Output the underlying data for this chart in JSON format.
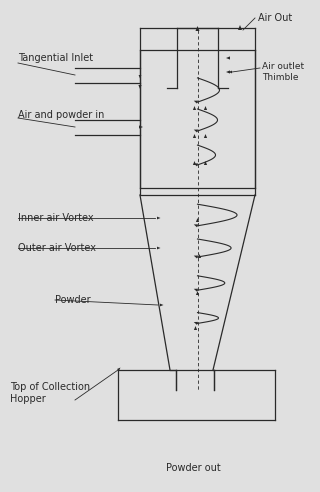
{
  "bg_color": "#e0e0e0",
  "line_color": "#2a2a2a",
  "text_color": "#2a2a2a",
  "labels": {
    "air_out": "Air Out",
    "tangential_inlet": "Tangential Inlet",
    "air_powder_in": "Air and powder in",
    "air_outlet_thimble": "Air outlet\nThimble",
    "inner_vortex": "Inner air Vortex",
    "outer_vortex": "Outer air Vortex",
    "powder": "Powder",
    "top_hopper": "Top of Collection\nHopper",
    "powder_out": "Powder out"
  },
  "figsize": [
    3.2,
    4.92
  ],
  "dpi": 100
}
